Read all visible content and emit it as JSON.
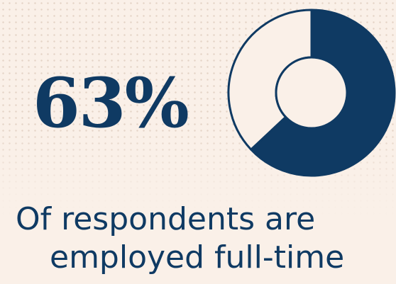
{
  "colors": {
    "background": "#faf0e8",
    "accent": "#0f3a63",
    "remainder_fill": "#faf0e8"
  },
  "chart_data": {
    "type": "pie",
    "variant": "donut",
    "value_label": "63%",
    "slices": [
      {
        "label": "",
        "value": 63,
        "color": "#0f3a63"
      },
      {
        "label": "",
        "value": 37,
        "color": "#faf0e8"
      }
    ]
  },
  "caption": {
    "line1": "Of respondents are",
    "line2": "employed full-time"
  }
}
